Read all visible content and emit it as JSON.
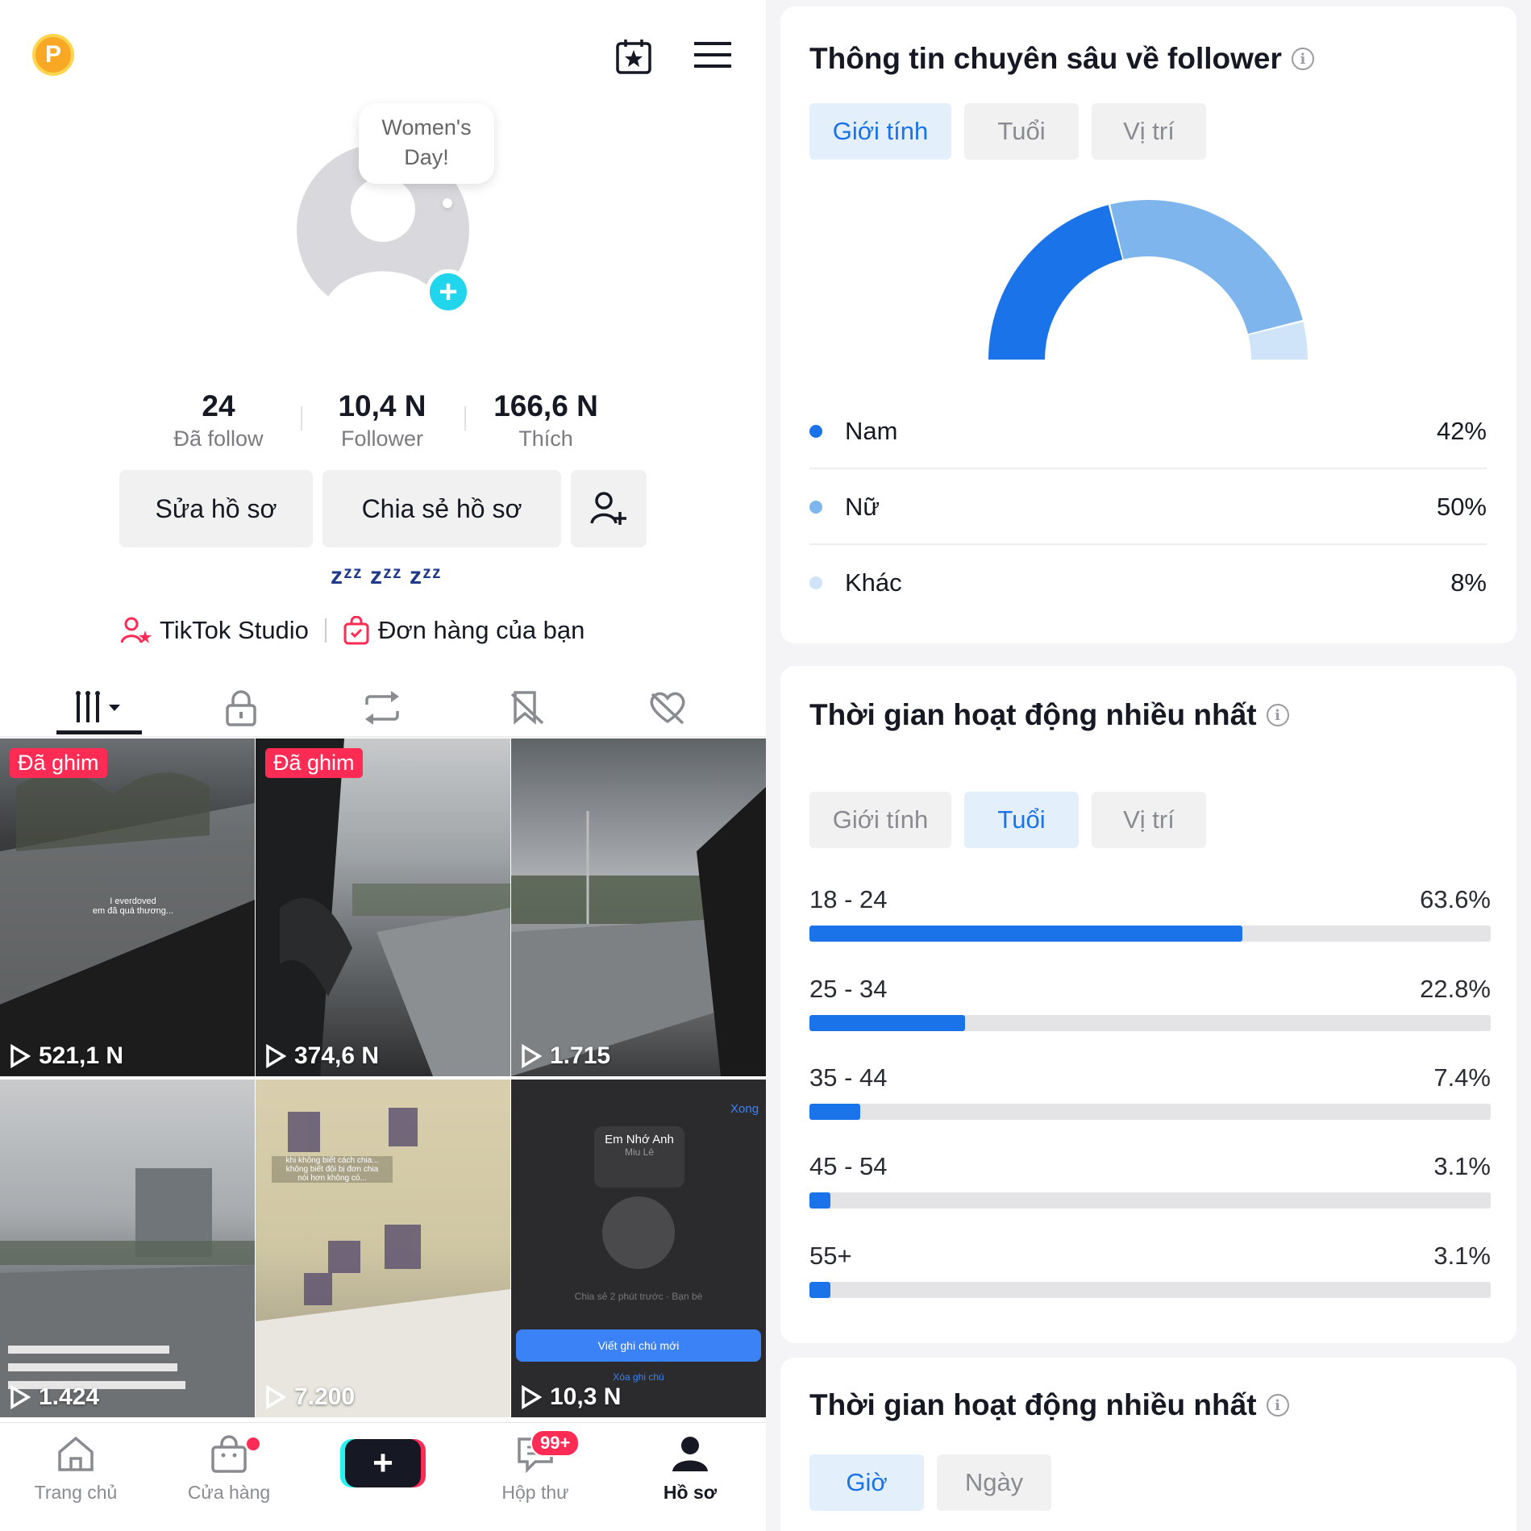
{
  "profile": {
    "top_badge": "P",
    "bubble_text": "Women's Day!",
    "stats": [
      {
        "num": "24",
        "label": "Đã follow"
      },
      {
        "num": "10,4 N",
        "label": "Follower"
      },
      {
        "num": "166,6 N",
        "label": "Thích"
      }
    ],
    "edit_label": "Sửa hồ sơ",
    "share_label": "Chia sẻ hồ sơ",
    "zzz": "zᶻᶻ zᶻᶻ zᶻᶻ",
    "studio_label": "TikTok Studio",
    "orders_label": "Đơn hàng của bạn"
  },
  "videos": [
    {
      "views": "521,1 N",
      "pinned": "Đã ghim",
      "overlay": "I everdoved\nem đã quá thương..."
    },
    {
      "views": "374,6 N",
      "pinned": "Đã ghim"
    },
    {
      "views": "1.715"
    },
    {
      "views": "1.424"
    },
    {
      "views": "7.200",
      "overlay": "khi không biết cách chia...\nkhông biết đội bị đơn chia\nnói hơn không có..."
    },
    {
      "views": "10,3 N",
      "done": "Xong",
      "song": "Em Nhớ Anh",
      "artist": "Miu Lê",
      "note": "Chia sẻ 2 phút trước · Bạn bè",
      "write": "Viết ghi chú mới",
      "delete": "Xóa ghi chú"
    }
  ],
  "nav": {
    "home": "Trang chủ",
    "shop": "Cửa hàng",
    "inbox": "Hộp thư",
    "inbox_badge": "99+",
    "profile": "Hồ sơ"
  },
  "insights": {
    "title": "Thông tin chuyên sâu về follower",
    "tabs": [
      "Giới tính",
      "Tuổi",
      "Vị trí"
    ],
    "active_tab": 0,
    "gender": [
      {
        "label": "Nam",
        "value": "42%",
        "pct": 42,
        "color": "#1a73e8"
      },
      {
        "label": "Nữ",
        "value": "50%",
        "pct": 50,
        "color": "#7db5ec"
      },
      {
        "label": "Khác",
        "value": "8%",
        "pct": 8,
        "color": "#cfe4f8"
      }
    ]
  },
  "activity": {
    "title": "Thời gian hoạt động nhiều nhất",
    "tabs": [
      "Giới tính",
      "Tuổi",
      "Vị trí"
    ],
    "active_tab": 1,
    "ages": [
      {
        "label": "18 - 24",
        "value": "63.6%",
        "pct": 63.6
      },
      {
        "label": "25 - 34",
        "value": "22.8%",
        "pct": 22.8
      },
      {
        "label": "35 - 44",
        "value": "7.4%",
        "pct": 7.4
      },
      {
        "label": "45 - 54",
        "value": "3.1%",
        "pct": 3.1
      },
      {
        "label": "55+",
        "value": "3.1%",
        "pct": 3.1
      }
    ]
  },
  "activity2": {
    "title": "Thời gian hoạt động nhiều nhất",
    "tabs": [
      "Giờ",
      "Ngày"
    ],
    "active_tab": 0
  },
  "colors": {
    "accent": "#1a73e8",
    "tiktok_red": "#fe2c55",
    "tiktok_cyan": "#25f4ee"
  }
}
